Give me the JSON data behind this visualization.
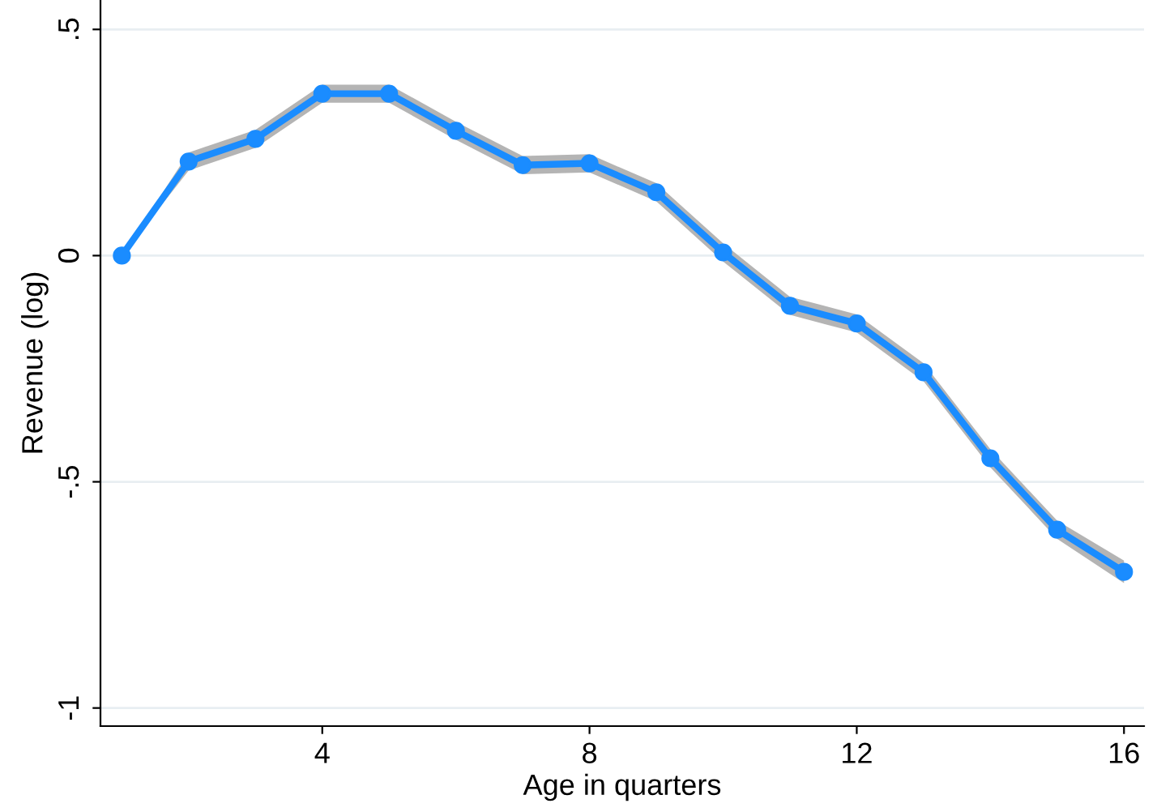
{
  "chart_data": {
    "type": "line",
    "xlabel": "Age in quarters",
    "ylabel": "Revenue (log)",
    "x": [
      1,
      2,
      3,
      4,
      5,
      6,
      7,
      8,
      9,
      10,
      11,
      12,
      13,
      14,
      15,
      16
    ],
    "series": [
      {
        "color": "#1a8cff",
        "values": [
          0,
          0.208,
          0.258,
          0.358,
          0.358,
          0.276,
          0.2,
          0.204,
          0.14,
          0.007,
          -0.111,
          -0.15,
          -0.258,
          -0.448,
          -0.606,
          -0.699
        ],
        "lower": [
          0,
          0.188,
          0.238,
          0.338,
          0.338,
          0.256,
          0.18,
          0.184,
          0.12,
          -0.013,
          -0.131,
          -0.17,
          -0.278,
          -0.468,
          -0.626,
          -0.724
        ],
        "upper": [
          0,
          0.228,
          0.278,
          0.378,
          0.378,
          0.296,
          0.22,
          0.224,
          0.16,
          0.027,
          -0.091,
          -0.13,
          -0.238,
          -0.428,
          -0.586,
          -0.674
        ]
      }
    ],
    "xlim": [
      0.68,
      16.3
    ],
    "ylim": [
      -1.04,
      0.565
    ],
    "xticks": [
      4,
      8,
      12,
      16
    ],
    "yticks": [
      {
        "value": -1,
        "label": "-1"
      },
      {
        "value": -0.5,
        "label": "-.5"
      },
      {
        "value": 0,
        "label": "0"
      },
      {
        "value": 0.5,
        "label": ".5"
      }
    ],
    "grid": "y",
    "marker": "circle",
    "line_style": "solid"
  }
}
